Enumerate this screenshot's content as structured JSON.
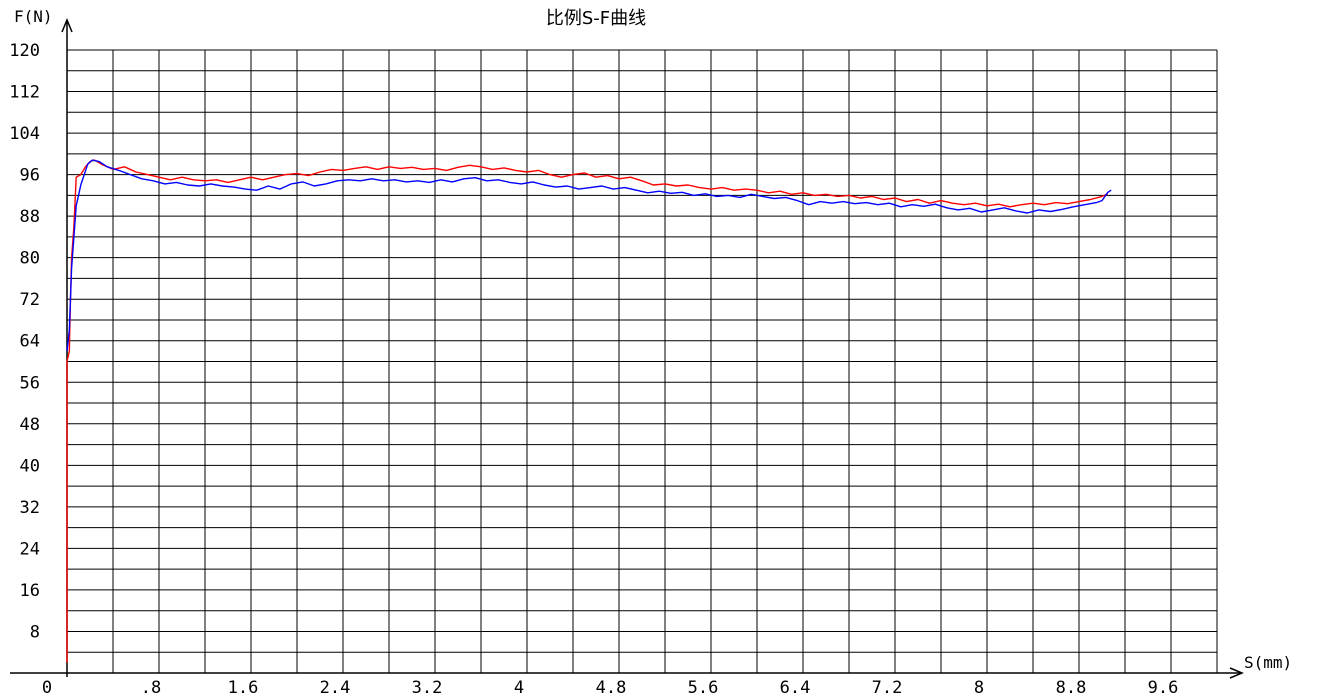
{
  "chart_data": {
    "type": "line",
    "title": "比例S-F曲线",
    "xlabel": "S(mm)",
    "ylabel": "F(N)",
    "xlim": [
      0,
      10
    ],
    "ylim": [
      0,
      120
    ],
    "grid": true,
    "x_major_ticks": [
      0.4,
      0.8,
      1.2,
      1.6,
      2.0,
      2.4,
      2.8,
      3.2,
      3.6,
      4.0,
      4.4,
      4.8,
      5.2,
      5.6,
      6.0,
      6.4,
      6.8,
      7.2,
      7.6,
      8.0,
      8.4,
      8.8,
      9.2,
      9.6,
      10.0
    ],
    "x_tick_labels": [
      {
        "value": 0,
        "label": "0"
      },
      {
        "value": 0.8,
        "label": ".8"
      },
      {
        "value": 1.6,
        "label": "1.6"
      },
      {
        "value": 2.4,
        "label": "2.4"
      },
      {
        "value": 3.2,
        "label": "3.2"
      },
      {
        "value": 4.0,
        "label": "4"
      },
      {
        "value": 4.8,
        "label": "4.8"
      },
      {
        "value": 5.6,
        "label": "5.6"
      },
      {
        "value": 6.4,
        "label": "6.4"
      },
      {
        "value": 7.2,
        "label": "7.2"
      },
      {
        "value": 8.0,
        "label": "8"
      },
      {
        "value": 8.8,
        "label": "8.8"
      },
      {
        "value": 9.6,
        "label": "9.6"
      }
    ],
    "y_tick_labels": [
      {
        "value": 8,
        "label": "8"
      },
      {
        "value": 16,
        "label": "16"
      },
      {
        "value": 24,
        "label": "24"
      },
      {
        "value": 32,
        "label": "32"
      },
      {
        "value": 40,
        "label": "40"
      },
      {
        "value": 48,
        "label": "48"
      },
      {
        "value": 56,
        "label": "56"
      },
      {
        "value": 64,
        "label": "64"
      },
      {
        "value": 72,
        "label": "72"
      },
      {
        "value": 80,
        "label": "80"
      },
      {
        "value": 88,
        "label": "88"
      },
      {
        "value": 96,
        "label": "96"
      },
      {
        "value": 104,
        "label": "104"
      },
      {
        "value": 112,
        "label": "112"
      },
      {
        "value": 120,
        "label": "120"
      }
    ],
    "y_minor_step": 4,
    "series": [
      {
        "color": "#ff0000",
        "points": [
          [
            0.0,
            2
          ],
          [
            0.0,
            60
          ],
          [
            0.02,
            62
          ],
          [
            0.03,
            72
          ],
          [
            0.04,
            80
          ],
          [
            0.06,
            86
          ],
          [
            0.08,
            95.5
          ],
          [
            0.12,
            96
          ],
          [
            0.16,
            97.5
          ],
          [
            0.2,
            98.5
          ],
          [
            0.24,
            98.8
          ],
          [
            0.3,
            98
          ],
          [
            0.4,
            97
          ],
          [
            0.5,
            97.5
          ],
          [
            0.6,
            96.5
          ],
          [
            0.7,
            96
          ],
          [
            0.8,
            95.5
          ],
          [
            0.9,
            95
          ],
          [
            1.0,
            95.5
          ],
          [
            1.1,
            95
          ],
          [
            1.2,
            94.8
          ],
          [
            1.3,
            95
          ],
          [
            1.4,
            94.5
          ],
          [
            1.5,
            95
          ],
          [
            1.6,
            95.5
          ],
          [
            1.7,
            95
          ],
          [
            1.8,
            95.5
          ],
          [
            1.9,
            96
          ],
          [
            2.0,
            96.2
          ],
          [
            2.1,
            95.8
          ],
          [
            2.2,
            96.5
          ],
          [
            2.3,
            97
          ],
          [
            2.4,
            96.8
          ],
          [
            2.5,
            97.2
          ],
          [
            2.6,
            97.5
          ],
          [
            2.7,
            97
          ],
          [
            2.8,
            97.5
          ],
          [
            2.9,
            97.2
          ],
          [
            3.0,
            97.4
          ],
          [
            3.1,
            97
          ],
          [
            3.2,
            97.2
          ],
          [
            3.3,
            96.8
          ],
          [
            3.4,
            97.4
          ],
          [
            3.5,
            97.8
          ],
          [
            3.6,
            97.5
          ],
          [
            3.7,
            97
          ],
          [
            3.8,
            97.3
          ],
          [
            3.9,
            96.8
          ],
          [
            4.0,
            96.5
          ],
          [
            4.1,
            96.8
          ],
          [
            4.2,
            96
          ],
          [
            4.3,
            95.5
          ],
          [
            4.4,
            96
          ],
          [
            4.5,
            96.3
          ],
          [
            4.6,
            95.5
          ],
          [
            4.7,
            95.8
          ],
          [
            4.8,
            95.2
          ],
          [
            4.9,
            95.5
          ],
          [
            5.0,
            94.8
          ],
          [
            5.1,
            94
          ],
          [
            5.2,
            94.2
          ],
          [
            5.3,
            93.8
          ],
          [
            5.4,
            94
          ],
          [
            5.5,
            93.5
          ],
          [
            5.6,
            93.2
          ],
          [
            5.7,
            93.5
          ],
          [
            5.8,
            93
          ],
          [
            5.9,
            93.2
          ],
          [
            6.0,
            93
          ],
          [
            6.1,
            92.5
          ],
          [
            6.2,
            92.8
          ],
          [
            6.3,
            92.2
          ],
          [
            6.4,
            92.5
          ],
          [
            6.5,
            92
          ],
          [
            6.6,
            92.2
          ],
          [
            6.7,
            91.8
          ],
          [
            6.8,
            92
          ],
          [
            6.9,
            91.5
          ],
          [
            7.0,
            91.8
          ],
          [
            7.1,
            91.2
          ],
          [
            7.2,
            91.5
          ],
          [
            7.3,
            90.8
          ],
          [
            7.4,
            91.2
          ],
          [
            7.5,
            90.5
          ],
          [
            7.6,
            91
          ],
          [
            7.7,
            90.5
          ],
          [
            7.8,
            90.2
          ],
          [
            7.9,
            90.5
          ],
          [
            8.0,
            90
          ],
          [
            8.1,
            90.3
          ],
          [
            8.2,
            89.8
          ],
          [
            8.3,
            90.2
          ],
          [
            8.4,
            90.5
          ],
          [
            8.5,
            90.2
          ],
          [
            8.6,
            90.6
          ],
          [
            8.7,
            90.4
          ],
          [
            8.8,
            90.8
          ],
          [
            8.9,
            91.2
          ],
          [
            9.0,
            91.8
          ],
          [
            9.05,
            92.3
          ]
        ]
      },
      {
        "color": "#0000ff",
        "points": [
          [
            0.0,
            62
          ],
          [
            0.02,
            66
          ],
          [
            0.04,
            78
          ],
          [
            0.08,
            90
          ],
          [
            0.12,
            94
          ],
          [
            0.18,
            98
          ],
          [
            0.22,
            98.8
          ],
          [
            0.28,
            98.5
          ],
          [
            0.35,
            97.5
          ],
          [
            0.45,
            96.8
          ],
          [
            0.55,
            96
          ],
          [
            0.65,
            95.2
          ],
          [
            0.75,
            94.8
          ],
          [
            0.85,
            94.2
          ],
          [
            0.95,
            94.5
          ],
          [
            1.05,
            94
          ],
          [
            1.15,
            93.8
          ],
          [
            1.25,
            94.2
          ],
          [
            1.35,
            93.8
          ],
          [
            1.45,
            93.6
          ],
          [
            1.55,
            93.2
          ],
          [
            1.65,
            93
          ],
          [
            1.75,
            93.8
          ],
          [
            1.85,
            93.2
          ],
          [
            1.95,
            94.2
          ],
          [
            2.05,
            94.6
          ],
          [
            2.15,
            93.8
          ],
          [
            2.25,
            94.2
          ],
          [
            2.35,
            94.8
          ],
          [
            2.45,
            95
          ],
          [
            2.55,
            94.8
          ],
          [
            2.65,
            95.2
          ],
          [
            2.75,
            94.8
          ],
          [
            2.85,
            95
          ],
          [
            2.95,
            94.6
          ],
          [
            3.05,
            94.8
          ],
          [
            3.15,
            94.5
          ],
          [
            3.25,
            95
          ],
          [
            3.35,
            94.6
          ],
          [
            3.45,
            95.2
          ],
          [
            3.55,
            95.4
          ],
          [
            3.65,
            94.8
          ],
          [
            3.75,
            95
          ],
          [
            3.85,
            94.5
          ],
          [
            3.95,
            94.2
          ],
          [
            4.05,
            94.6
          ],
          [
            4.15,
            94
          ],
          [
            4.25,
            93.6
          ],
          [
            4.35,
            93.8
          ],
          [
            4.45,
            93.2
          ],
          [
            4.55,
            93.5
          ],
          [
            4.65,
            93.8
          ],
          [
            4.75,
            93.2
          ],
          [
            4.85,
            93.5
          ],
          [
            4.95,
            93
          ],
          [
            5.05,
            92.5
          ],
          [
            5.15,
            92.8
          ],
          [
            5.25,
            92.4
          ],
          [
            5.35,
            92.6
          ],
          [
            5.45,
            92
          ],
          [
            5.55,
            92.3
          ],
          [
            5.65,
            91.8
          ],
          [
            5.75,
            92
          ],
          [
            5.85,
            91.6
          ],
          [
            5.95,
            92.2
          ],
          [
            6.05,
            91.8
          ],
          [
            6.15,
            91.4
          ],
          [
            6.25,
            91.6
          ],
          [
            6.35,
            91
          ],
          [
            6.45,
            90.2
          ],
          [
            6.55,
            90.8
          ],
          [
            6.65,
            90.5
          ],
          [
            6.75,
            90.8
          ],
          [
            6.85,
            90.4
          ],
          [
            6.95,
            90.6
          ],
          [
            7.05,
            90.2
          ],
          [
            7.15,
            90.5
          ],
          [
            7.25,
            89.8
          ],
          [
            7.35,
            90.2
          ],
          [
            7.45,
            89.9
          ],
          [
            7.55,
            90.3
          ],
          [
            7.65,
            89.6
          ],
          [
            7.75,
            89.2
          ],
          [
            7.85,
            89.5
          ],
          [
            7.95,
            88.8
          ],
          [
            8.05,
            89.2
          ],
          [
            8.15,
            89.6
          ],
          [
            8.25,
            89
          ],
          [
            8.35,
            88.6
          ],
          [
            8.45,
            89.2
          ],
          [
            8.55,
            88.9
          ],
          [
            8.65,
            89.3
          ],
          [
            8.75,
            89.8
          ],
          [
            8.85,
            90.2
          ],
          [
            8.95,
            90.6
          ],
          [
            9.0,
            91
          ],
          [
            9.05,
            92.6
          ],
          [
            9.08,
            93
          ]
        ]
      }
    ]
  }
}
